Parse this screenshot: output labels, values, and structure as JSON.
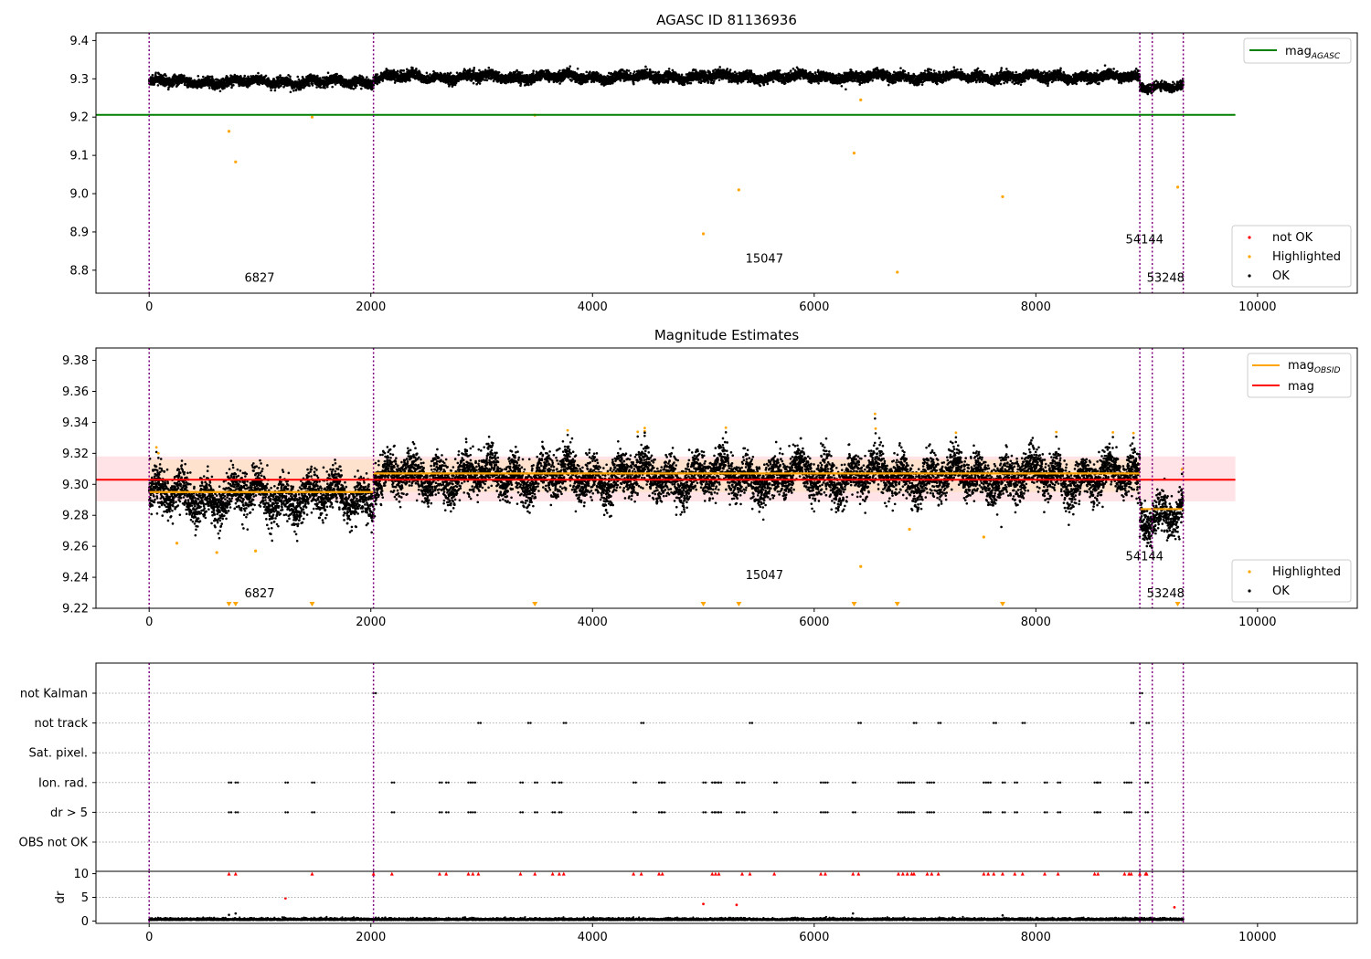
{
  "colors": {
    "ok": "#000000",
    "highlighted": "#ffa500",
    "not_ok": "#ff0000",
    "agasc_line": "#008000",
    "mean_line": "#ff0000",
    "obsid_line": "#ffa500",
    "band": "#ffd0d5",
    "obs_boundary": "#800080",
    "grid": "#b0b0b0"
  },
  "chart_data": [
    {
      "type": "scatter",
      "title": "AGASC ID 81136936",
      "xlim": [
        -480,
        10900
      ],
      "ylim": [
        8.74,
        9.42
      ],
      "xticks": [
        0,
        2000,
        4000,
        6000,
        8000,
        10000
      ],
      "yticks": [
        8.8,
        8.9,
        9.0,
        9.1,
        9.2,
        9.3,
        9.4
      ],
      "ytick_format": 1,
      "hlines": [
        {
          "name": "agasc",
          "y": 9.206,
          "x": [
            -480,
            9800
          ],
          "color": "#008000"
        }
      ],
      "obs_boundaries": [
        0,
        2024,
        8938,
        9050,
        9330
      ],
      "obs_labels": [
        {
          "text": "6827",
          "x": 860,
          "y": 8.77
        },
        {
          "text": "15047",
          "x": 5380,
          "y": 8.82
        },
        {
          "text": "54144",
          "x": 8810,
          "y": 8.87
        },
        {
          "text": "53248",
          "x": 9000,
          "y": 8.77
        }
      ],
      "segments": [
        {
          "x0": 0,
          "x1": 2024,
          "y": 9.292,
          "noise": 0.014
        },
        {
          "x0": 2024,
          "x1": 8938,
          "y": 9.305,
          "noise": 0.014
        },
        {
          "x0": 8938,
          "x1": 9330,
          "y": 9.281,
          "noise": 0.012
        }
      ],
      "highlighted_outliers": [
        [
          720,
          9.163
        ],
        [
          780,
          9.083
        ],
        [
          1470,
          9.2
        ],
        [
          3480,
          9.205
        ],
        [
          5000,
          8.895
        ],
        [
          5320,
          9.01
        ],
        [
          6360,
          9.106
        ],
        [
          6420,
          9.245
        ],
        [
          6750,
          8.795
        ],
        [
          7700,
          8.992
        ],
        [
          9280,
          9.017
        ]
      ],
      "not_ok_points": [],
      "legend": {
        "position": "upper right",
        "lines": [
          {
            "label": "mag",
            "sub": "AGASC",
            "color": "#008000"
          }
        ]
      },
      "legend2": {
        "position": "lower right",
        "markers": [
          {
            "label": "not OK",
            "color": "#ff0000"
          },
          {
            "label": "Highlighted",
            "color": "#ffa500"
          },
          {
            "label": "OK",
            "color": "#000000"
          }
        ]
      }
    },
    {
      "type": "scatter",
      "title": "Magnitude Estimates",
      "xlim": [
        -480,
        10900
      ],
      "ylim": [
        9.22,
        9.388
      ],
      "xticks": [
        0,
        2000,
        4000,
        6000,
        8000,
        10000
      ],
      "yticks": [
        9.22,
        9.24,
        9.26,
        9.28,
        9.3,
        9.32,
        9.34,
        9.36,
        9.38
      ],
      "ytick_format": 2,
      "band": {
        "y0": 9.289,
        "y1": 9.318,
        "x": [
          -480,
          9800
        ]
      },
      "obsid_band": {
        "y0": 9.295,
        "y1": 9.316,
        "x": [
          0,
          8938
        ]
      },
      "hlines": [
        {
          "name": "mag",
          "y": 9.303,
          "x": [
            -480,
            9800
          ],
          "color": "#ff0000"
        }
      ],
      "obsid_steps": [
        {
          "x0": 0,
          "x1": 2024,
          "y": 9.295
        },
        {
          "x0": 2024,
          "x1": 8938,
          "y": 9.307
        },
        {
          "x0": 8938,
          "x1": 9330,
          "y": 9.284
        }
      ],
      "obs_boundaries": [
        0,
        2024,
        8938,
        9050,
        9330
      ],
      "obs_labels": [
        {
          "text": "6827",
          "x": 860,
          "y": 9.227
        },
        {
          "text": "15047",
          "x": 5380,
          "y": 9.239
        },
        {
          "text": "54144",
          "x": 8810,
          "y": 9.251
        },
        {
          "text": "53248",
          "x": 9000,
          "y": 9.227
        }
      ],
      "segments": [
        {
          "x0": 0,
          "x1": 2024,
          "y": 9.292,
          "noise": 0.012
        },
        {
          "x0": 2024,
          "x1": 8938,
          "y": 9.305,
          "noise": 0.012
        },
        {
          "x0": 8938,
          "x1": 9330,
          "y": 9.281,
          "noise": 0.011
        }
      ],
      "highlighted_points": [
        [
          250,
          9.262
        ],
        [
          610,
          9.256
        ],
        [
          960,
          9.257
        ],
        [
          6420,
          9.247
        ],
        [
          6860,
          9.271
        ],
        [
          7530,
          9.266
        ]
      ],
      "clipped_markers_x": [
        720,
        780,
        1470,
        3480,
        5000,
        5320,
        6360,
        6750,
        7700,
        9280
      ],
      "legend": {
        "position": "upper right",
        "lines": [
          {
            "label": "mag",
            "sub": "OBSID",
            "color": "#ffa500"
          },
          {
            "label": "mag",
            "sub": "",
            "color": "#ff0000"
          }
        ]
      },
      "legend2": {
        "position": "lower right",
        "markers": [
          {
            "label": "Highlighted",
            "color": "#ffa500"
          },
          {
            "label": "OK",
            "color": "#000000"
          }
        ]
      }
    },
    {
      "type": "scatter",
      "title": "",
      "xlim": [
        -480,
        10900
      ],
      "rows": [
        "not Kalman",
        "not track",
        "Sat. pixel.",
        "Ion. rad.",
        "dr > 5",
        "OBS not OK"
      ],
      "flag_x": {
        "not Kalman": [
          2024,
          8938
        ],
        "not track": [
          2970,
          3420,
          3740,
          4440,
          5420,
          6400,
          6900,
          7120,
          7620,
          7880,
          8860,
          9000
        ],
        "Sat. pixel.": [],
        "Ion. rad.": [
          720,
          780,
          1230,
          1470,
          2190,
          2620,
          2680,
          2880,
          2920,
          3350,
          3480,
          3640,
          3700,
          4370,
          4600,
          4630,
          5000,
          5080,
          5110,
          5140,
          5300,
          5350,
          5640,
          6060,
          6100,
          6350,
          6760,
          6800,
          6840,
          6880,
          7020,
          7060,
          7530,
          7570,
          7700,
          7810,
          8080,
          8200,
          8530,
          8560,
          8800,
          8840,
          8990
        ],
        "dr > 5": [
          720,
          780,
          1230,
          1470,
          2190,
          2620,
          2680,
          2880,
          2920,
          3350,
          3480,
          3640,
          3700,
          4370,
          4600,
          4630,
          5000,
          5080,
          5110,
          5140,
          5300,
          5350,
          5640,
          6060,
          6100,
          6350,
          6760,
          6800,
          6840,
          6880,
          7020,
          7060,
          7530,
          7570,
          7700,
          7810,
          8080,
          8200,
          8530,
          8560,
          8800,
          8840,
          8990
        ],
        "OBS not OK": []
      },
      "dr": {
        "ylabel": "dr",
        "ylim": [
          -0.5,
          10.5
        ],
        "yticks": [
          0,
          5,
          10
        ],
        "clip_value": 10,
        "clipped_x": [
          720,
          780,
          1470,
          2024,
          2190,
          2620,
          2680,
          2880,
          2920,
          2970,
          3350,
          3480,
          3640,
          3700,
          3740,
          4370,
          4440,
          4600,
          4630,
          5080,
          5110,
          5140,
          5350,
          5420,
          5640,
          6060,
          6100,
          6350,
          6400,
          6760,
          6800,
          6840,
          6880,
          6900,
          7020,
          7060,
          7120,
          7530,
          7570,
          7620,
          7700,
          7810,
          7880,
          8080,
          8200,
          8530,
          8560,
          8800,
          8840,
          8860,
          8938,
          8990,
          9000
        ],
        "not_ok_points": [
          [
            1230,
            4.8
          ],
          [
            5000,
            3.6
          ],
          [
            5300,
            3.4
          ],
          [
            9250,
            2.9
          ]
        ],
        "ok_spikes": [
          [
            720,
            1.3
          ],
          [
            780,
            1.6
          ],
          [
            6350,
            1.6
          ],
          [
            7700,
            1.2
          ]
        ],
        "baseline": {
          "x0": 0,
          "x1": 9330,
          "y": 0.2
        }
      },
      "obs_boundaries": [
        0,
        2024,
        8938,
        9050,
        9330
      ]
    }
  ]
}
